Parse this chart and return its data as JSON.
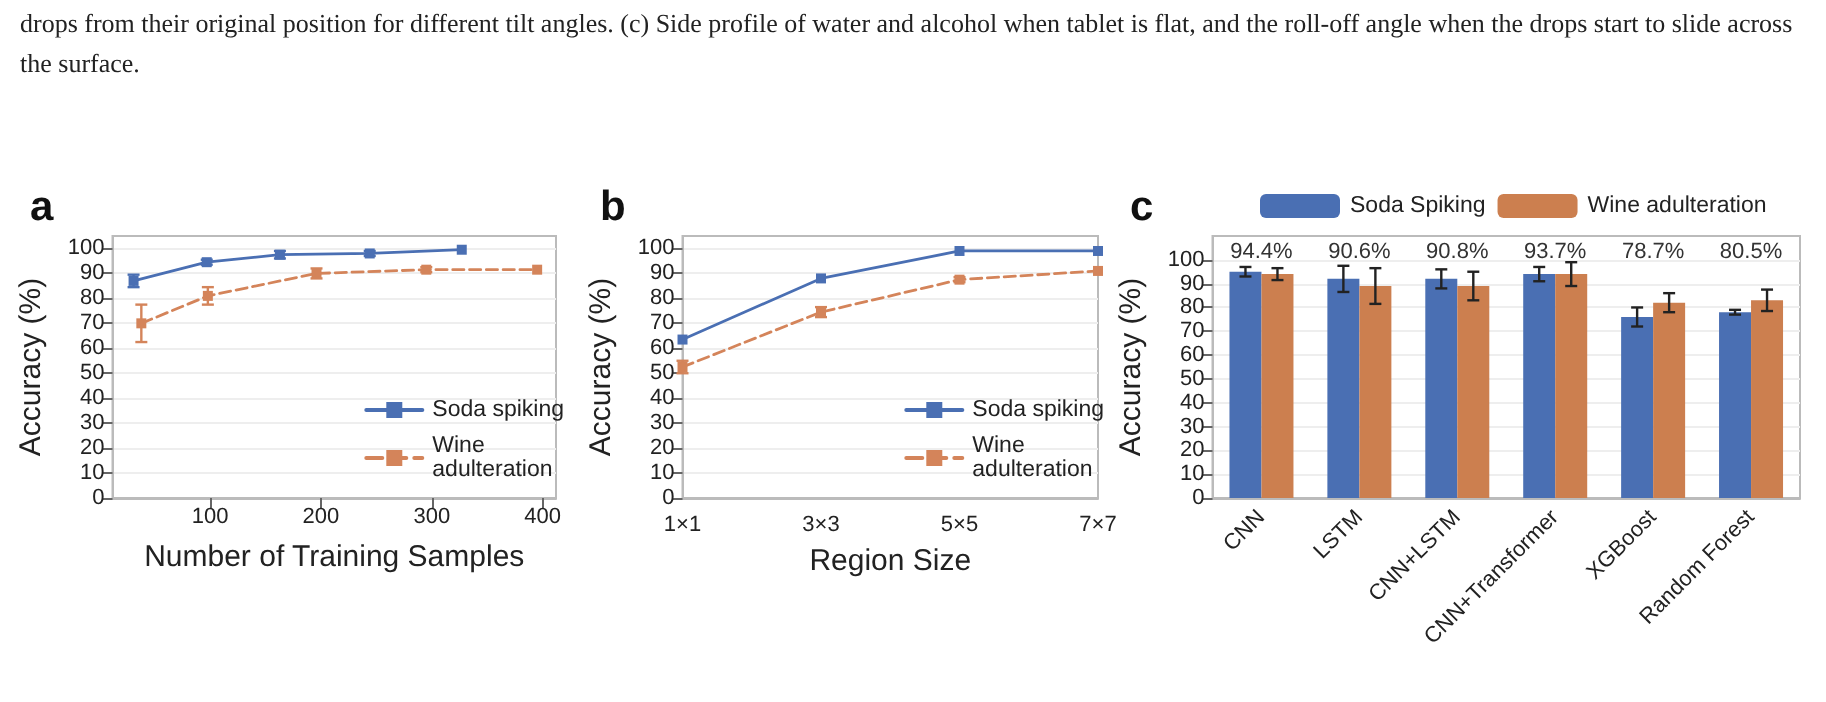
{
  "chart_data": [
    {
      "type": "line",
      "title": "a",
      "xlabel": "Number of Training Samples",
      "ylabel": "Accuracy (%)",
      "xlim": [
        12,
        412
      ],
      "xticks": [
        100,
        200,
        300,
        400
      ],
      "ylim": [
        0,
        105
      ],
      "yticks": [
        0,
        10,
        20,
        30,
        40,
        50,
        60,
        70,
        80,
        90,
        100
      ],
      "grid": "y",
      "legend": "bottom right",
      "marker": "square",
      "annotations": [
        "drops from their original position for different tilt angles. (c) Side profile of water and alcohol when tablet is flat, and the roll-off angle when the drops start to slide across the surface."
      ],
      "series": [
        {
          "name": "Soda spiking",
          "color": "#4a6fb3",
          "line_style": "solid",
          "x": [
            31,
            97,
            163,
            244,
            327
          ],
          "values": [
            87,
            94.5,
            97.5,
            98,
            99.5
          ],
          "errors": [
            2.5,
            1,
            1.5,
            1,
            null
          ]
        },
        {
          "name": "Wine adulteration",
          "color": "#d4845a",
          "line_style": "dashed",
          "x": [
            38,
            98,
            196,
            295,
            395
          ],
          "values": [
            70,
            81,
            90,
            91.5,
            91.5
          ],
          "errors": [
            7.5,
            3.5,
            2,
            1,
            null
          ]
        }
      ]
    },
    {
      "type": "line",
      "title": "b",
      "xlabel": "Region Size",
      "ylabel": "Accuracy (%)",
      "categories": [
        "1×1",
        "3×3",
        "5×5",
        "7×7"
      ],
      "ylim": [
        0,
        105
      ],
      "yticks": [
        0,
        10,
        20,
        30,
        40,
        50,
        60,
        70,
        80,
        90,
        100
      ],
      "grid": "y",
      "legend": "bottom right",
      "marker": "square",
      "series": [
        {
          "name": "Soda spiking",
          "color": "#4a6fb3",
          "line_style": "solid",
          "values": [
            63.5,
            88,
            99,
            99
          ],
          "errors": [
            null,
            null,
            null,
            null
          ]
        },
        {
          "name": "Wine adulteration",
          "color": "#d4845a",
          "line_style": "dashed",
          "values": [
            52.5,
            74.5,
            87.5,
            91
          ],
          "errors": [
            2.5,
            2,
            1,
            null
          ]
        }
      ]
    },
    {
      "type": "bar",
      "title": "c",
      "ylabel": "Accuracy (%)",
      "categories": [
        "CNN",
        "LSTM",
        "CNN+LSTM",
        "CNN+Transformer",
        "XGBoost",
        "Random Forest"
      ],
      "ylim": [
        0,
        110
      ],
      "yticks": [
        0,
        10,
        20,
        30,
        40,
        50,
        60,
        70,
        80,
        90,
        100
      ],
      "grid": "y",
      "legend": "top",
      "annotations": [
        "94.4%",
        "90.6%",
        "90.8%",
        "93.7%",
        "78.7%",
        "80.5%"
      ],
      "series": [
        {
          "name": "Soda Spiking",
          "color": "#4a6fb3",
          "values": [
            95,
            92,
            92,
            94,
            76,
            78
          ],
          "errors": [
            2,
            5.5,
            4,
            3,
            4,
            1
          ]
        },
        {
          "name": "Wine adulteration",
          "color": "#cc7f4f",
          "values": [
            94,
            89,
            89,
            94,
            82,
            83
          ],
          "errors": [
            2.5,
            7.5,
            6,
            5,
            4,
            4.5
          ]
        }
      ]
    }
  ]
}
